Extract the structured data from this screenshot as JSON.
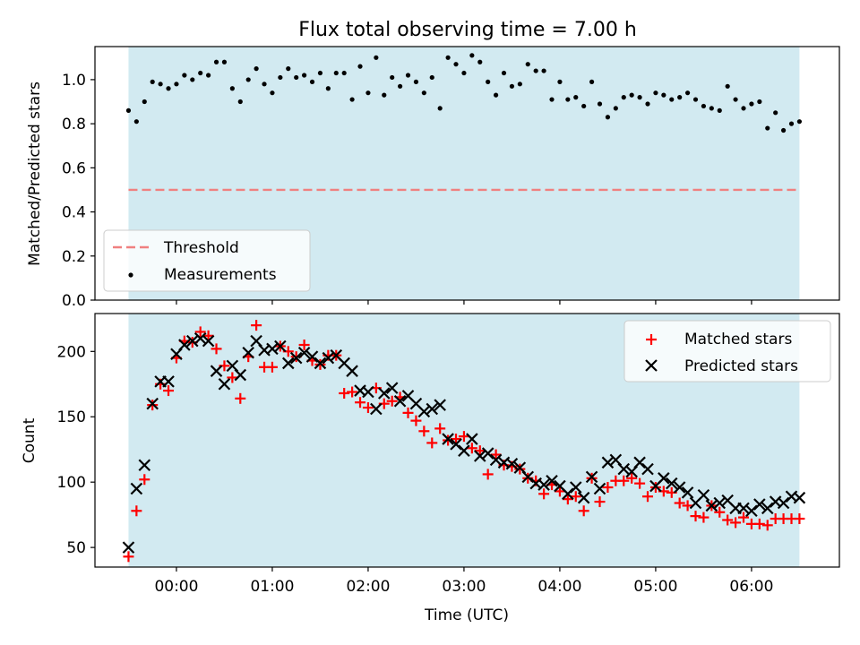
{
  "figure": {
    "title": "Flux total observing time = 7.00 h",
    "xlabel": "Time (UTC)"
  },
  "colors": {
    "background_band": "#add8e6",
    "threshold": "#f08080",
    "measurements": "#000000",
    "matched": "#ff0000",
    "predicted": "#000000"
  },
  "chart_data": [
    {
      "type": "scatter",
      "panel": "top",
      "ylabel": "Matched/Predicted stars",
      "xlim": [
        "23:09",
        "06:55"
      ],
      "ylim": [
        0,
        1.15
      ],
      "yticks": [
        0.0,
        0.2,
        0.4,
        0.6,
        0.8,
        1.0
      ],
      "ytick_labels": [
        "0.0",
        "0.2",
        "0.4",
        "0.6",
        "0.8",
        "1.0"
      ],
      "shaded_span": [
        "23:30",
        "06:30"
      ],
      "legend": {
        "placement": "lower-left",
        "entries": [
          "Threshold",
          "Measurements"
        ]
      },
      "threshold": {
        "name": "Threshold",
        "value": 0.5,
        "style": "dashed"
      },
      "series": [
        {
          "name": "Measurements",
          "marker": "dot",
          "x": [
            "23:30",
            "23:35",
            "23:40",
            "23:45",
            "23:50",
            "23:55",
            "00:00",
            "00:05",
            "00:10",
            "00:15",
            "00:20",
            "00:25",
            "00:30",
            "00:35",
            "00:40",
            "00:45",
            "00:50",
            "00:55",
            "01:00",
            "01:05",
            "01:10",
            "01:15",
            "01:20",
            "01:25",
            "01:30",
            "01:35",
            "01:40",
            "01:45",
            "01:50",
            "01:55",
            "02:00",
            "02:05",
            "02:10",
            "02:15",
            "02:20",
            "02:25",
            "02:30",
            "02:35",
            "02:40",
            "02:45",
            "02:50",
            "02:55",
            "03:00",
            "03:05",
            "03:10",
            "03:15",
            "03:20",
            "03:25",
            "03:30",
            "03:35",
            "03:40",
            "03:45",
            "03:50",
            "03:55",
            "04:00",
            "04:05",
            "04:10",
            "04:15",
            "04:20",
            "04:25",
            "04:30",
            "04:35",
            "04:40",
            "04:45",
            "04:50",
            "04:55",
            "05:00",
            "05:05",
            "05:10",
            "05:15",
            "05:20",
            "05:25",
            "05:30",
            "05:35",
            "05:40",
            "05:45",
            "05:50",
            "05:55",
            "06:00",
            "06:05",
            "06:10",
            "06:15",
            "06:20",
            "06:25",
            "06:30"
          ],
          "y": [
            0.86,
            0.81,
            0.9,
            0.99,
            0.98,
            0.96,
            0.98,
            1.02,
            1.0,
            1.03,
            1.02,
            1.08,
            1.08,
            0.96,
            0.9,
            1.0,
            1.05,
            0.98,
            0.94,
            1.01,
            1.05,
            1.01,
            1.02,
            0.99,
            1.03,
            0.96,
            1.03,
            1.03,
            0.91,
            1.06,
            0.94,
            1.1,
            0.93,
            1.01,
            0.97,
            1.02,
            0.99,
            0.94,
            1.01,
            0.87,
            1.1,
            1.07,
            1.03,
            1.11,
            1.08,
            0.99,
            0.93,
            1.03,
            0.97,
            0.98,
            1.07,
            1.04,
            1.04,
            0.91,
            0.99,
            0.91,
            0.92,
            0.88,
            0.99,
            0.89,
            0.83,
            0.87,
            0.92,
            0.93,
            0.92,
            0.89,
            0.94,
            0.93,
            0.91,
            0.92,
            0.94,
            0.91,
            0.88,
            0.87,
            0.86,
            0.97,
            0.91,
            0.87,
            0.89,
            0.9,
            0.78,
            0.85,
            0.77,
            0.8,
            0.81
          ]
        }
      ]
    },
    {
      "type": "scatter",
      "panel": "bottom",
      "ylabel": "Count",
      "xlim": [
        "23:09",
        "06:55"
      ],
      "ylim": [
        35,
        229
      ],
      "yticks": [
        50,
        100,
        150,
        200
      ],
      "ytick_labels": [
        "50",
        "100",
        "150",
        "200"
      ],
      "xticks": [
        "00:00",
        "01:00",
        "02:00",
        "03:00",
        "04:00",
        "05:00",
        "06:00"
      ],
      "xtick_labels": [
        "00:00",
        "01:00",
        "02:00",
        "03:00",
        "04:00",
        "05:00",
        "06:00"
      ],
      "shaded_span": [
        "23:30",
        "06:30"
      ],
      "legend": {
        "placement": "top-right",
        "entries": [
          "Matched stars",
          "Predicted stars"
        ]
      },
      "x": [
        "23:30",
        "23:35",
        "23:40",
        "23:45",
        "23:50",
        "23:55",
        "00:00",
        "00:05",
        "00:10",
        "00:15",
        "00:20",
        "00:25",
        "00:30",
        "00:35",
        "00:40",
        "00:45",
        "00:50",
        "00:55",
        "01:00",
        "01:05",
        "01:10",
        "01:15",
        "01:20",
        "01:25",
        "01:30",
        "01:35",
        "01:40",
        "01:45",
        "01:50",
        "01:55",
        "02:00",
        "02:05",
        "02:10",
        "02:15",
        "02:20",
        "02:25",
        "02:30",
        "02:35",
        "02:40",
        "02:45",
        "02:50",
        "02:55",
        "03:00",
        "03:05",
        "03:10",
        "03:15",
        "03:20",
        "03:25",
        "03:30",
        "03:35",
        "03:40",
        "03:45",
        "03:50",
        "03:55",
        "04:00",
        "04:05",
        "04:10",
        "04:15",
        "04:20",
        "04:25",
        "04:30",
        "04:35",
        "04:40",
        "04:45",
        "04:50",
        "04:55",
        "05:00",
        "05:05",
        "05:10",
        "05:15",
        "05:20",
        "05:25",
        "05:30",
        "05:35",
        "05:40",
        "05:45",
        "05:50",
        "05:55",
        "06:00",
        "06:05",
        "06:10",
        "06:15",
        "06:20",
        "06:25",
        "06:30"
      ],
      "series": [
        {
          "name": "Matched stars",
          "marker": "plus",
          "values": [
            43,
            78,
            102,
            159,
            175,
            170,
            195,
            208,
            207,
            215,
            212,
            202,
            189,
            180,
            164,
            196,
            220,
            188,
            188,
            204,
            200,
            196,
            205,
            193,
            190,
            197,
            197,
            168,
            169,
            161,
            157,
            172,
            160,
            162,
            165,
            153,
            147,
            139,
            130,
            141,
            132,
            133,
            135,
            126,
            124,
            106,
            121,
            113,
            112,
            110,
            103,
            101,
            91,
            98,
            93,
            87,
            89,
            78,
            103,
            85,
            96,
            101,
            101,
            103,
            99,
            89,
            96,
            93,
            92,
            84,
            82,
            74,
            73,
            82,
            77,
            71,
            69,
            73,
            68,
            68,
            67,
            72,
            72,
            72,
            72
          ],
          "note_hidden": null
        },
        {
          "name": "Predicted stars",
          "marker": "x",
          "values": [
            50,
            95,
            113,
            160,
            177,
            177,
            198,
            205,
            208,
            210,
            208,
            185,
            175,
            189,
            182,
            199,
            208,
            201,
            202,
            204,
            191,
            195,
            199,
            196,
            191,
            195,
            197,
            191,
            185,
            170,
            169,
            156,
            168,
            172,
            162,
            166,
            160,
            154,
            156,
            159,
            133,
            129,
            124,
            133,
            120,
            122,
            117,
            115,
            114,
            111,
            104,
            99,
            98,
            101,
            97,
            91,
            96,
            88,
            104,
            95,
            115,
            117,
            110,
            108,
            115,
            110,
            97,
            103,
            99,
            96,
            92,
            84,
            90,
            82,
            84,
            86,
            80,
            80,
            78,
            83,
            80,
            85,
            84,
            89,
            88
          ]
        }
      ]
    }
  ]
}
